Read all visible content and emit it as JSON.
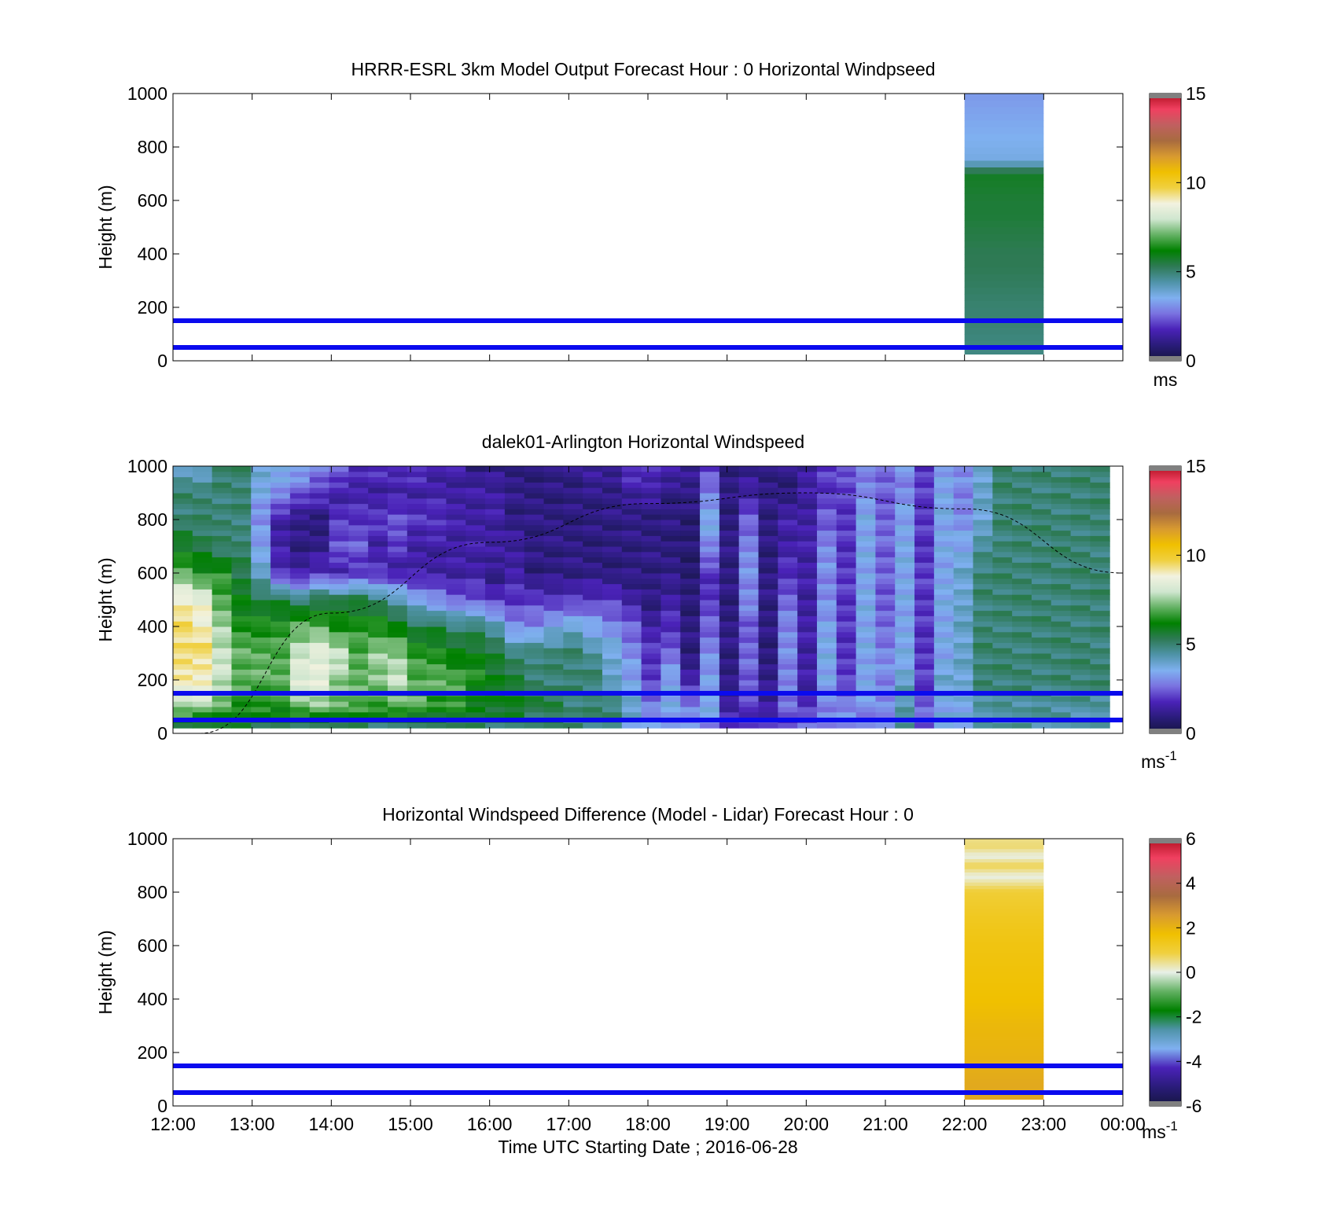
{
  "colors": {
    "overlay_lines": "#0a0aee",
    "speed_colormap": [
      "#151540",
      "#2a1c7a",
      "#4a22b8",
      "#7a72e0",
      "#7fb0f0",
      "#4f93a8",
      "#2e7a55",
      "#008000",
      "#63b163",
      "#cfe6cf",
      "#f2f2e0",
      "#f0d040",
      "#f0c000",
      "#d89a30",
      "#a86b3f",
      "#c06060",
      "#f04060",
      "#b01020"
    ],
    "diff_colormap": [
      "#151540",
      "#2a1c7a",
      "#4a22b8",
      "#7fb0f0",
      "#4f93a8",
      "#008000",
      "#63b163",
      "#e8f0e8",
      "#f0d040",
      "#f0c000",
      "#d89a30",
      "#a86b3f",
      "#c06060",
      "#f04060",
      "#b01020"
    ],
    "clip_color": "#808080"
  },
  "chart_data": [
    {
      "type": "heatmap",
      "title": "HRRR-ESRL 3km Model Output   Forecast Hour : 0 Horizontal Windpseed",
      "xlabel": "",
      "ylabel": "Height (m)",
      "xlim": [
        "12:00",
        "00:00"
      ],
      "ylim": [
        0,
        1000
      ],
      "yticks": [
        "0",
        "200",
        "400",
        "600",
        "800",
        "1000"
      ],
      "colorbar": {
        "range": [
          0,
          15
        ],
        "ticks": [
          "0",
          "5",
          "10",
          "15"
        ],
        "unit": "ms"
      },
      "overlay_heights_m": [
        50,
        150
      ],
      "column": {
        "x_start": "22:00",
        "x_end": "23:00",
        "heights_m": [
          25,
          100,
          150,
          200,
          250,
          300,
          350,
          400,
          450,
          500,
          550,
          600,
          650,
          700,
          750,
          800,
          850,
          900,
          950,
          1000
        ],
        "speeds_ms": [
          4.8,
          4.9,
          5.0,
          5.0,
          5.1,
          5.2,
          5.3,
          5.3,
          5.4,
          5.5,
          5.6,
          5.6,
          5.7,
          5.8,
          3.7,
          3.6,
          3.5,
          3.4,
          3.3,
          3.2
        ]
      }
    },
    {
      "type": "heatmap",
      "title": "dalek01-Arlington  Horizontal Windspeed",
      "xlabel": "",
      "ylabel": "Height (m)",
      "xlim": [
        "12:00",
        "00:00"
      ],
      "ylim": [
        0,
        1000
      ],
      "yticks": [
        "0",
        "200",
        "400",
        "600",
        "800",
        "1000"
      ],
      "colorbar": {
        "range": [
          0,
          15
        ],
        "ticks": [
          "0",
          "5",
          "10",
          "15"
        ],
        "unit": "ms",
        "unit_sup": "-1"
      },
      "overlay_heights_m": [
        50,
        150
      ],
      "columns_start": "12:00",
      "columns_end": "23:50",
      "heights_m": [
        25,
        100,
        200,
        300,
        400,
        500,
        600,
        700,
        800,
        900,
        1000
      ],
      "speed_profiles_ms": [
        [
          5.5,
          7.5,
          9.0,
          9.5,
          9.5,
          9.0,
          7.0,
          6.0,
          5.0,
          5.0,
          4.0
        ],
        [
          5.5,
          7.5,
          9.0,
          9.5,
          9.0,
          8.5,
          6.5,
          5.5,
          5.0,
          5.0,
          4.0
        ],
        [
          5.5,
          7.0,
          8.0,
          8.0,
          7.5,
          7.0,
          6.5,
          5.0,
          5.0,
          5.0,
          5.0
        ],
        [
          5.5,
          6.5,
          7.0,
          7.0,
          6.5,
          6.0,
          5.5,
          5.0,
          5.0,
          5.0,
          5.0
        ],
        [
          5.5,
          6.5,
          7.0,
          7.0,
          6.5,
          5.5,
          4.0,
          3.5,
          3.0,
          3.5,
          4.0
        ],
        [
          5.5,
          6.5,
          7.0,
          7.0,
          6.5,
          5.5,
          2.0,
          1.5,
          1.5,
          3.0,
          4.0
        ],
        [
          5.0,
          7.0,
          8.5,
          8.0,
          7.0,
          5.0,
          1.5,
          1.0,
          1.0,
          2.5,
          3.5
        ],
        [
          5.0,
          7.5,
          8.5,
          8.5,
          7.0,
          5.5,
          2.0,
          1.0,
          1.0,
          2.0,
          3.0
        ],
        [
          5.0,
          7.0,
          7.5,
          8.0,
          6.5,
          5.5,
          1.5,
          2.5,
          2.0,
          1.5,
          2.5
        ],
        [
          5.0,
          7.0,
          7.0,
          7.0,
          6.5,
          5.5,
          2.0,
          2.5,
          2.0,
          1.5,
          2.0
        ],
        [
          5.0,
          6.5,
          7.5,
          7.5,
          6.5,
          5.0,
          2.0,
          1.5,
          2.0,
          1.5,
          2.0
        ],
        [
          5.0,
          7.0,
          8.0,
          7.5,
          6.0,
          4.5,
          1.5,
          2.0,
          2.5,
          1.5,
          2.0
        ],
        [
          5.0,
          7.0,
          7.0,
          6.5,
          5.5,
          3.5,
          1.5,
          1.5,
          2.0,
          1.5,
          2.0
        ],
        [
          5.0,
          6.5,
          7.0,
          6.5,
          5.5,
          3.0,
          1.5,
          1.5,
          2.0,
          1.5,
          1.5
        ],
        [
          5.0,
          6.5,
          7.0,
          6.0,
          5.0,
          2.5,
          1.5,
          1.5,
          1.5,
          1.5,
          1.5
        ],
        [
          5.0,
          6.0,
          6.5,
          6.0,
          5.0,
          2.5,
          1.5,
          1.5,
          1.5,
          1.5,
          1.0
        ],
        [
          5.0,
          6.0,
          6.0,
          5.5,
          4.5,
          2.0,
          1.0,
          1.5,
          1.5,
          1.5,
          1.0
        ],
        [
          5.0,
          6.0,
          5.5,
          5.0,
          3.0,
          2.0,
          1.5,
          1.5,
          1.0,
          1.0,
          1.0
        ],
        [
          5.0,
          5.5,
          5.0,
          5.0,
          3.0,
          2.0,
          1.0,
          1.0,
          1.0,
          1.0,
          1.0
        ],
        [
          5.0,
          5.5,
          5.0,
          5.0,
          3.5,
          2.0,
          1.0,
          1.0,
          1.0,
          1.0,
          1.0
        ],
        [
          5.0,
          5.0,
          5.0,
          5.0,
          4.0,
          2.0,
          1.0,
          1.0,
          1.0,
          1.0,
          1.0
        ],
        [
          5.0,
          5.0,
          5.0,
          4.5,
          3.5,
          2.0,
          1.0,
          1.0,
          1.0,
          1.0,
          1.5
        ],
        [
          5.0,
          5.0,
          4.0,
          4.0,
          3.0,
          2.0,
          1.0,
          1.0,
          1.0,
          1.0,
          1.5
        ],
        [
          3.5,
          4.0,
          3.5,
          3.0,
          2.5,
          1.5,
          1.0,
          1.0,
          1.0,
          1.5,
          2.0
        ],
        [
          3.5,
          3.0,
          2.0,
          2.0,
          1.5,
          1.0,
          1.0,
          1.0,
          1.0,
          1.5,
          2.0
        ],
        [
          3.0,
          3.5,
          3.5,
          2.5,
          2.0,
          1.5,
          1.0,
          1.0,
          1.0,
          1.0,
          1.5
        ],
        [
          3.0,
          3.0,
          1.5,
          1.0,
          1.0,
          0.8,
          0.8,
          0.8,
          0.8,
          1.0,
          1.5
        ],
        [
          3.0,
          3.5,
          3.5,
          3.0,
          2.5,
          2.0,
          2.0,
          3.0,
          3.5,
          3.0,
          2.0
        ],
        [
          2.0,
          1.5,
          1.0,
          1.0,
          1.0,
          1.0,
          1.0,
          1.0,
          1.0,
          1.0,
          1.0
        ],
        [
          2.0,
          2.0,
          2.5,
          2.5,
          2.5,
          3.0,
          3.0,
          3.0,
          2.5,
          1.5,
          1.0
        ],
        [
          2.0,
          1.5,
          1.0,
          1.0,
          1.0,
          1.0,
          1.0,
          1.0,
          1.0,
          1.0,
          1.0
        ],
        [
          2.0,
          2.5,
          3.0,
          3.0,
          3.0,
          2.5,
          2.0,
          1.5,
          1.5,
          1.0,
          1.0
        ],
        [
          2.5,
          2.0,
          1.5,
          1.5,
          1.5,
          1.5,
          1.5,
          1.5,
          1.5,
          1.5,
          1.5
        ],
        [
          3.0,
          3.0,
          3.5,
          3.5,
          3.5,
          3.0,
          3.0,
          3.0,
          2.5,
          2.0,
          2.0
        ],
        [
          3.0,
          3.0,
          2.0,
          2.0,
          2.0,
          2.0,
          2.0,
          2.0,
          2.0,
          2.0,
          2.5
        ],
        [
          3.0,
          3.0,
          3.5,
          3.5,
          3.5,
          3.5,
          3.5,
          3.5,
          3.5,
          3.0,
          3.0
        ],
        [
          3.0,
          3.0,
          3.0,
          3.0,
          2.5,
          2.5,
          2.5,
          2.5,
          2.5,
          2.5,
          2.5
        ],
        [
          4.5,
          4.5,
          4.0,
          3.5,
          3.5,
          3.5,
          3.5,
          3.5,
          3.5,
          3.0,
          3.0
        ],
        [
          2.5,
          2.5,
          2.0,
          2.0,
          2.0,
          2.0,
          2.0,
          2.0,
          2.0,
          2.0,
          2.0
        ],
        [
          4.0,
          3.5,
          4.0,
          3.5,
          3.5,
          3.5,
          3.5,
          3.5,
          3.5,
          3.5,
          3.5
        ],
        [
          3.5,
          3.5,
          4.0,
          4.0,
          4.0,
          4.0,
          4.0,
          3.5,
          3.0,
          3.0,
          3.0
        ],
        [
          4.5,
          4.5,
          5.0,
          5.0,
          5.0,
          5.0,
          5.0,
          4.5,
          4.0,
          4.0,
          4.0
        ],
        [
          4.5,
          4.5,
          5.0,
          5.0,
          5.0,
          5.0,
          5.0,
          5.0,
          5.0,
          5.0,
          5.0
        ],
        [
          4.5,
          4.5,
          5.0,
          5.0,
          5.0,
          5.0,
          5.0,
          5.0,
          5.0,
          5.0,
          5.0
        ],
        [
          4.5,
          4.5,
          5.0,
          5.0,
          5.0,
          5.0,
          5.0,
          5.0,
          5.0,
          5.0,
          5.0
        ],
        [
          4.5,
          4.5,
          5.0,
          5.0,
          5.0,
          5.0,
          5.0,
          5.0,
          5.0,
          5.0,
          5.0
        ],
        [
          4.5,
          4.5,
          5.0,
          5.0,
          5.0,
          5.0,
          5.0,
          5.0,
          5.0,
          5.0,
          5.0
        ],
        [
          4.5,
          4.5,
          5.0,
          5.0,
          5.0,
          5.0,
          5.0,
          5.0,
          5.0,
          5.0,
          5.0
        ]
      ],
      "dashed_curve_points": [
        [
          "12:20",
          0
        ],
        [
          "14:00",
          450
        ],
        [
          "16:00",
          715
        ],
        [
          "18:00",
          860
        ],
        [
          "20:00",
          900
        ],
        [
          "22:00",
          840
        ],
        [
          "00:00",
          600
        ]
      ]
    },
    {
      "type": "heatmap",
      "title": "Horizontal Windspeed Difference (Model - Lidar) Forecast Hour : 0",
      "xlabel": "Time UTC  Starting Date ; 2016-06-28",
      "ylabel": "Height (m)",
      "xlim": [
        "12:00",
        "00:00"
      ],
      "ylim": [
        0,
        1000
      ],
      "xticks": [
        "12:00",
        "13:00",
        "14:00",
        "15:00",
        "16:00",
        "17:00",
        "18:00",
        "19:00",
        "20:00",
        "21:00",
        "22:00",
        "23:00",
        "00:00"
      ],
      "yticks": [
        "0",
        "200",
        "400",
        "600",
        "800",
        "1000"
      ],
      "colorbar": {
        "range": [
          -6,
          6
        ],
        "ticks": [
          "-6",
          "-4",
          "-2",
          "0",
          "2",
          "4",
          "6"
        ],
        "unit": "ms",
        "unit_sup": "-1"
      },
      "overlay_heights_m": [
        50,
        150
      ],
      "column": {
        "x_start": "22:00",
        "x_end": "23:00",
        "heights_m": [
          25,
          100,
          200,
          300,
          400,
          500,
          600,
          700,
          800,
          860,
          900,
          935,
          970,
          1000
        ],
        "diff_ms": [
          2.3,
          2.2,
          2.0,
          1.9,
          1.7,
          1.6,
          1.5,
          1.3,
          1.0,
          0.0,
          0.8,
          0.0,
          0.6,
          0.5
        ]
      }
    }
  ]
}
